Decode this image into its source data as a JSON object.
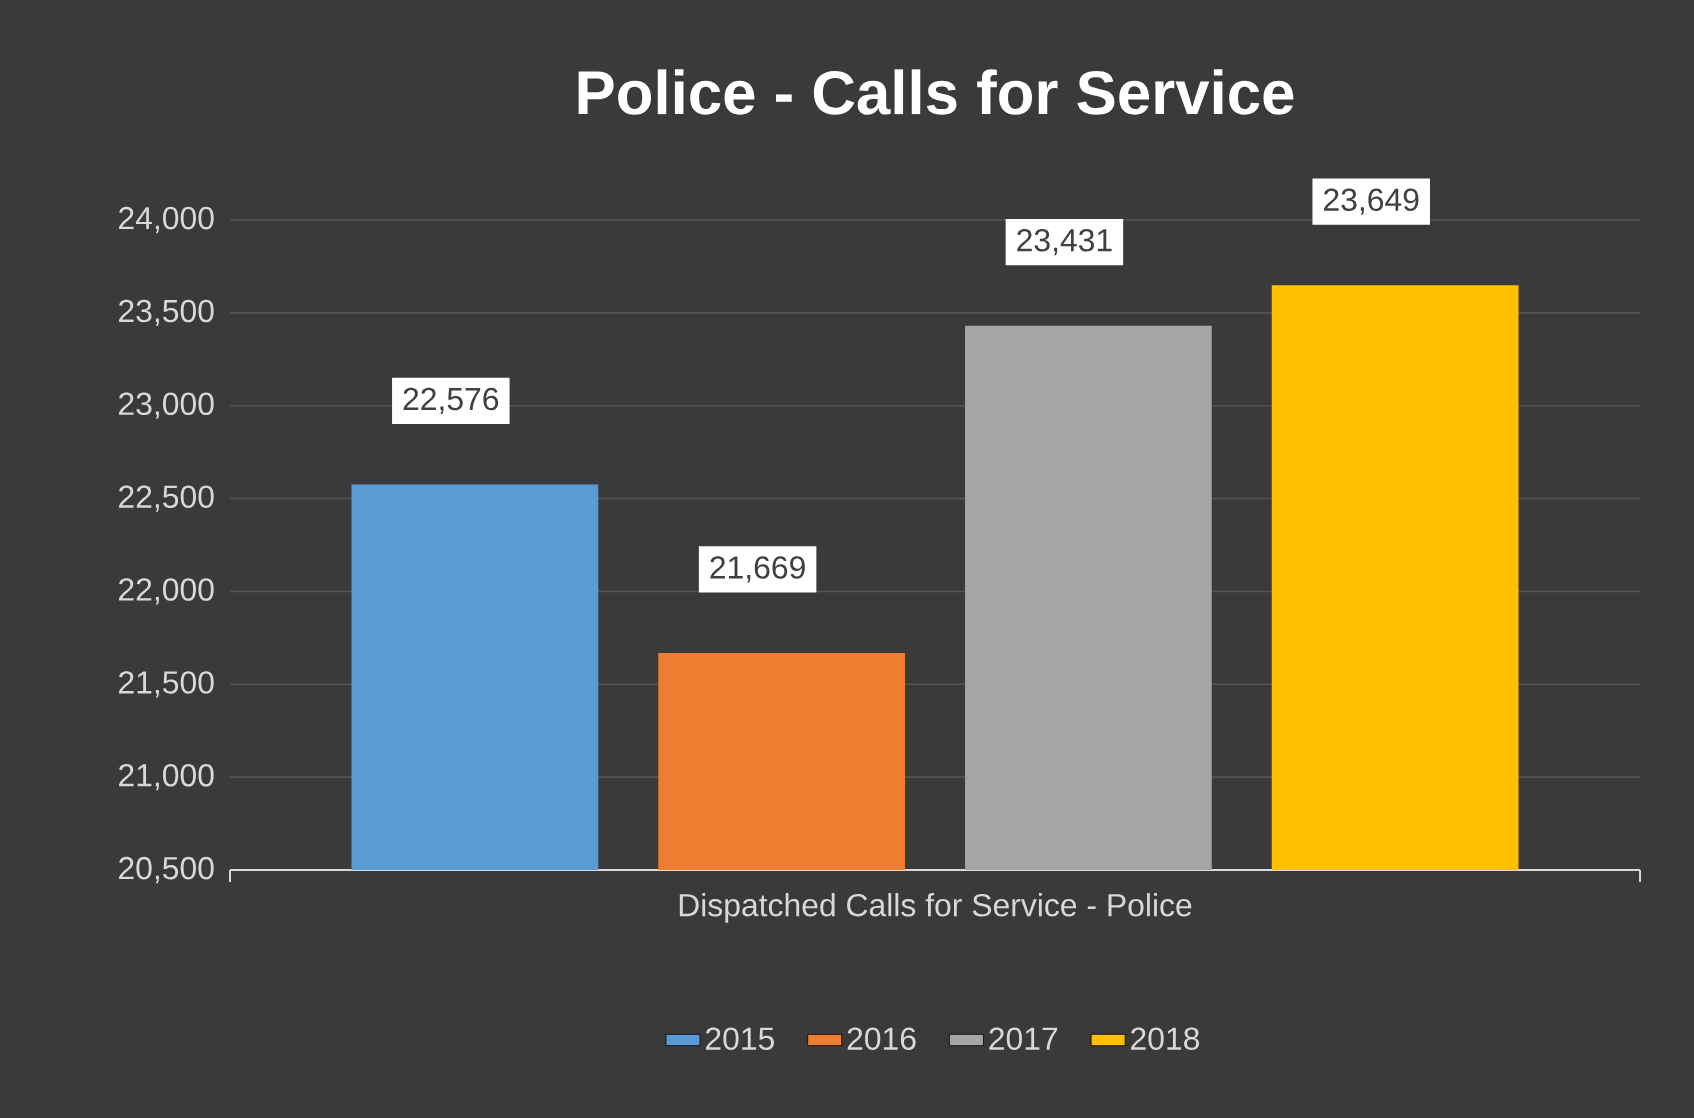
{
  "chart_data": {
    "type": "bar",
    "title": "Police - Calls for Service",
    "categories": [
      "Dispatched Calls for Service - Police"
    ],
    "series": [
      {
        "name": "2015",
        "color": "#5b9bd5",
        "values": [
          22576
        ],
        "value_labels": [
          "22,576"
        ]
      },
      {
        "name": "2016",
        "color": "#ed7d31",
        "values": [
          21669
        ],
        "value_labels": [
          "21,669"
        ]
      },
      {
        "name": "2017",
        "color": "#a5a5a5",
        "values": [
          23431
        ],
        "value_labels": [
          "23,431"
        ]
      },
      {
        "name": "2018",
        "color": "#ffc000",
        "values": [
          23649
        ],
        "value_labels": [
          "23,649"
        ]
      }
    ],
    "ylim": [
      20500,
      24000
    ],
    "yticks": [
      {
        "value": 20500,
        "label": "20,500"
      },
      {
        "value": 21000,
        "label": "21,000"
      },
      {
        "value": 21500,
        "label": "21,500"
      },
      {
        "value": 22000,
        "label": "22,000"
      },
      {
        "value": 22500,
        "label": "22,500"
      },
      {
        "value": 23000,
        "label": "23,000"
      },
      {
        "value": 23500,
        "label": "23,500"
      },
      {
        "value": 24000,
        "label": "24,000"
      }
    ],
    "grid": "y",
    "legend": "bottom"
  }
}
